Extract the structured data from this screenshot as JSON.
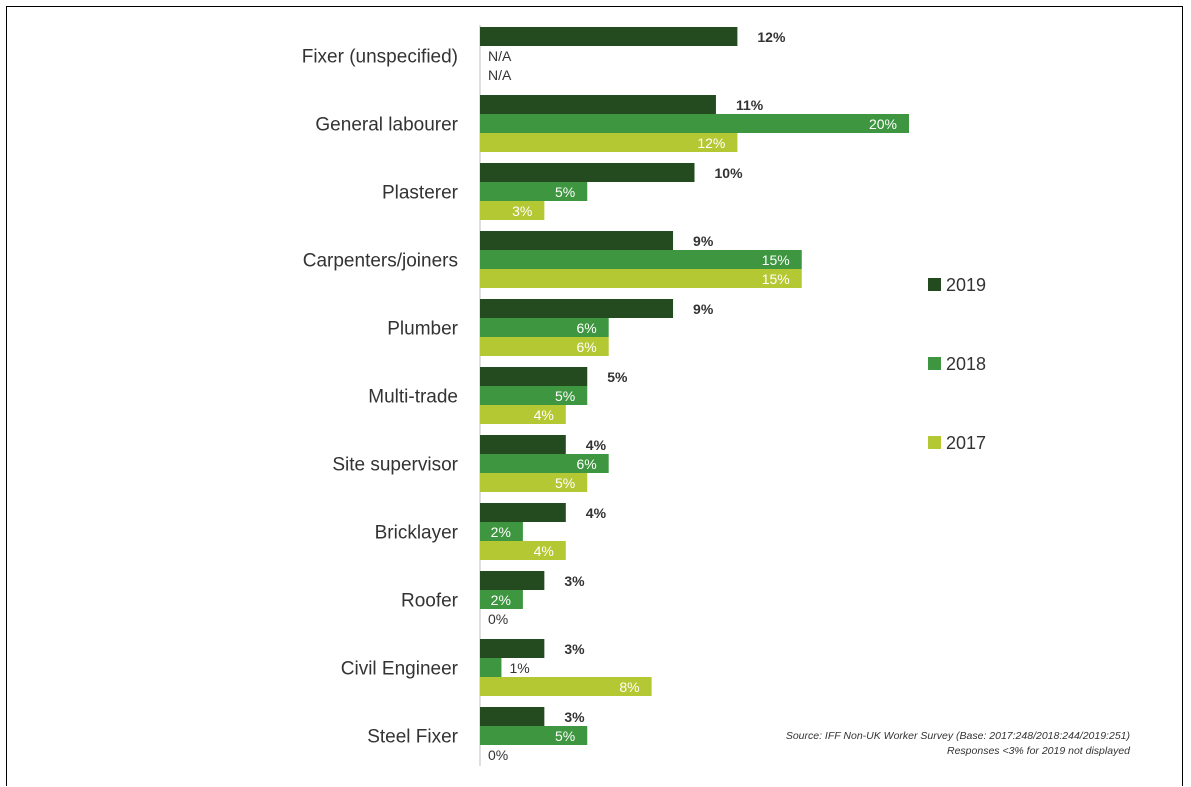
{
  "chart_data": {
    "type": "bar",
    "orientation": "horizontal",
    "categories": [
      "Fixer (unspecified)",
      "General labourer",
      "Plasterer",
      "Carpenters/joiners",
      "Plumber",
      "Multi-trade",
      "Site supervisor",
      "Bricklayer",
      "Roofer",
      "Civil Engineer",
      "Steel Fixer"
    ],
    "series": [
      {
        "name": "2019",
        "color": "#244b1f",
        "values": [
          12,
          11,
          10,
          9,
          9,
          5,
          4,
          4,
          3,
          3,
          3
        ],
        "labels": [
          "12%",
          "11%",
          "10%",
          "9%",
          "9%",
          "5%",
          "4%",
          "4%",
          "3%",
          "3%",
          "3%"
        ]
      },
      {
        "name": "2018",
        "color": "#3e9640",
        "values": [
          null,
          20,
          5,
          15,
          6,
          5,
          6,
          2,
          2,
          1,
          5
        ],
        "labels": [
          "N/A",
          "20%",
          "5%",
          "15%",
          "6%",
          "5%",
          "6%",
          "2%",
          "2%",
          "1%",
          "5%"
        ]
      },
      {
        "name": "2017",
        "color": "#b3c833",
        "values": [
          null,
          12,
          3,
          15,
          6,
          4,
          5,
          4,
          0,
          8,
          0
        ],
        "labels": [
          "N/A",
          "12%",
          "3%",
          "15%",
          "6%",
          "4%",
          "5%",
          "4%",
          "0%",
          "8%",
          "0%"
        ]
      }
    ],
    "legend_position": "right",
    "grid": false,
    "source_note": [
      "Source: IFF Non-UK Worker Survey (Base: 2017:248/2018:244/2019:251)",
      "Responses <3% for 2019 not displayed"
    ]
  }
}
